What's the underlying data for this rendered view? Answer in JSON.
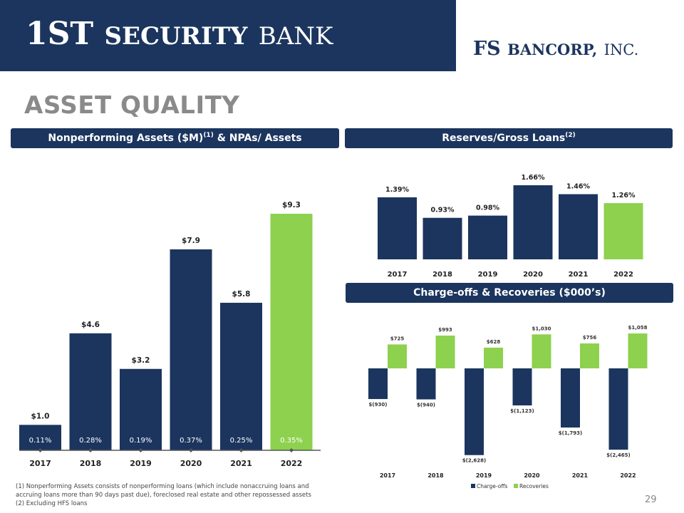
{
  "header": {
    "bank_name_part1": "1ST",
    "bank_name_part2": "SECURITY",
    "bank_name_part3": "BANK",
    "holding_name_part1": "FS",
    "holding_name_part2": "BANCORP,",
    "holding_name_part3": "INC."
  },
  "page_title": "ASSET QUALITY",
  "sections": {
    "npa_title": "Nonperforming Assets ($M)",
    "npa_sup": "(1)",
    "npa_title_suffix": " & NPAs/ Assets",
    "reserves_title": "Reserves/Gross Loans",
    "reserves_sup": "(2)",
    "chargeoffs_title": "Charge-offs & Recoveries ($000’s)"
  },
  "colors": {
    "navy": "#1b355e",
    "green": "#8dd14f",
    "gray_title": "#8a8a8a"
  },
  "chart_data": [
    {
      "type": "bar",
      "categories": [
        "2017",
        "2018",
        "2019",
        "2020",
        "2021",
        "2022"
      ],
      "values": [
        1.0,
        4.6,
        3.2,
        7.9,
        5.8,
        9.3
      ],
      "value_labels": [
        "$1.0",
        "$4.6",
        "$3.2",
        "$7.9",
        "$5.8",
        "$9.3"
      ],
      "ratio_labels": [
        "0.11%",
        "0.28%",
        "0.19%",
        "0.37%",
        "0.25%",
        "0.35%"
      ],
      "highlight_index": 5,
      "ylim": [
        0,
        9.3
      ]
    },
    {
      "type": "bar",
      "categories": [
        "2017",
        "2018",
        "2019",
        "2020",
        "2021",
        "2022"
      ],
      "values": [
        1.39,
        0.93,
        0.98,
        1.66,
        1.46,
        1.26
      ],
      "value_labels": [
        "1.39%",
        "0.93%",
        "0.98%",
        "1.66%",
        "1.46%",
        "1.26%"
      ],
      "highlight_index": 5,
      "ylim": [
        0,
        1.66
      ]
    },
    {
      "type": "bar",
      "categories": [
        "2017",
        "2018",
        "2019",
        "2020",
        "2021",
        "2022"
      ],
      "series": [
        {
          "name": "Charge-offs",
          "values": [
            -930,
            -940,
            -2628,
            -1123,
            -1793,
            -2465
          ],
          "labels": [
            "$(930)",
            "$(940)",
            "$(2,628)",
            "$(1,123)",
            "$(1,793)",
            "$(2,465)"
          ]
        },
        {
          "name": "Recoveries",
          "values": [
            725,
            993,
            628,
            1030,
            756,
            1058
          ],
          "labels": [
            "$725",
            "$993",
            "$628",
            "$1,030",
            "$756",
            "$1,058"
          ]
        }
      ],
      "legend_position": "bottom",
      "ylim": [
        -2628,
        1058
      ]
    }
  ],
  "footnotes": {
    "line1": "(1) Nonperforming Assets consists of nonperforming loans (which include nonaccruing loans and accruing loans more than 90 days past due), foreclosed real estate and other repossessed assets",
    "line2": "(2) Excluding HFS loans"
  },
  "page_number": "29"
}
